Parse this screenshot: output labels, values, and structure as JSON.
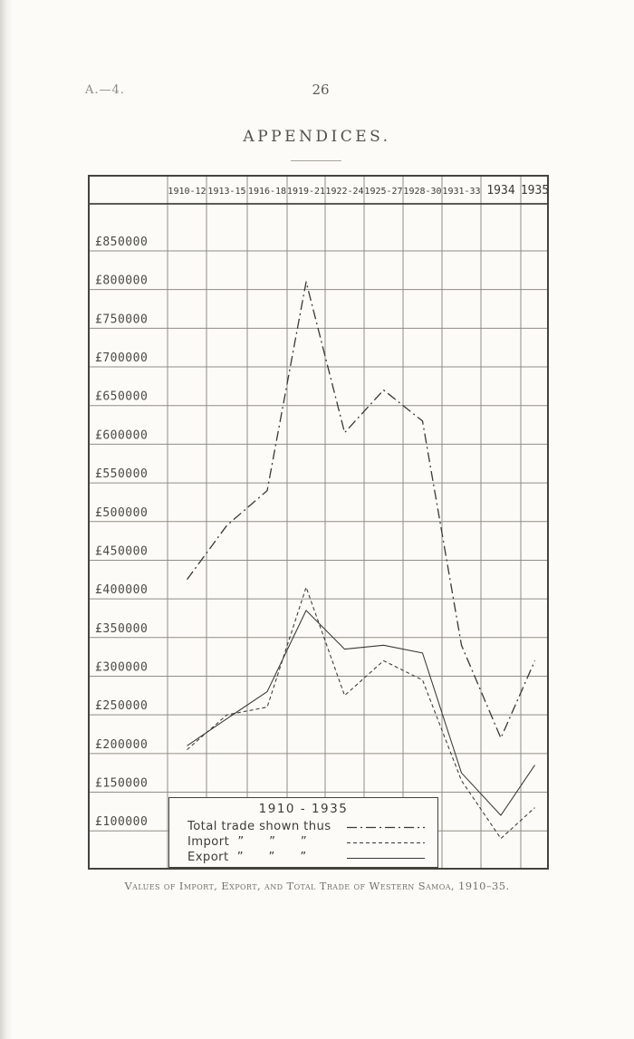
{
  "page": {
    "doc_ref": "A.—4.",
    "page_number": "26",
    "title": "APPENDICES.",
    "caption": "Values of Import, Export, and Total Trade of Western Samoa, 1910–35."
  },
  "colors": {
    "paper": "#fcfbf7",
    "ink": "#3a3834",
    "grid": "#908d85",
    "frame": "#45433d"
  },
  "chart_data": {
    "type": "line",
    "title": "Values of Import, Export, and Total Trade of Western Samoa, 1910-35",
    "categories": [
      "1910-12",
      "1913-15",
      "1916-18",
      "1919-21",
      "1922-24",
      "1925-27",
      "1928-30",
      "1931-33",
      "1934",
      "1935"
    ],
    "y_tick_labels": [
      "£850000",
      "£800000",
      "£750000",
      "£700000",
      "£650000",
      "£600000",
      "£550000",
      "£500000",
      "£450000",
      "£400000",
      "£350000",
      "£300000",
      "£250000",
      "£200000",
      "£150000",
      "£100000"
    ],
    "y_tick_values": [
      850000,
      800000,
      750000,
      700000,
      650000,
      600000,
      550000,
      500000,
      450000,
      400000,
      350000,
      300000,
      250000,
      200000,
      150000,
      100000
    ],
    "ylim": [
      100000,
      850000
    ],
    "currency": "£",
    "grid": true,
    "legend_position": "bottom-left-box",
    "series": [
      {
        "name": "Total trade",
        "line_style": "dashdot",
        "values": [
          425000,
          495000,
          540000,
          810000,
          615000,
          670000,
          630000,
          340000,
          220000,
          320000
        ]
      },
      {
        "name": "Import",
        "line_style": "dashed",
        "values": [
          205000,
          250000,
          260000,
          415000,
          275000,
          320000,
          295000,
          165000,
          90000,
          130000
        ]
      },
      {
        "name": "Export",
        "line_style": "solid",
        "values": [
          210000,
          245000,
          280000,
          385000,
          335000,
          340000,
          330000,
          175000,
          120000,
          185000
        ]
      }
    ],
    "legend": {
      "title": "1910 - 1935",
      "entries": [
        {
          "label": "Total trade shown thus",
          "line_style": "dashdot"
        },
        {
          "label": "Import  ”      ”      ”",
          "line_style": "dashed"
        },
        {
          "label": "Export  ”      ”      ”",
          "line_style": "solid"
        }
      ]
    }
  }
}
